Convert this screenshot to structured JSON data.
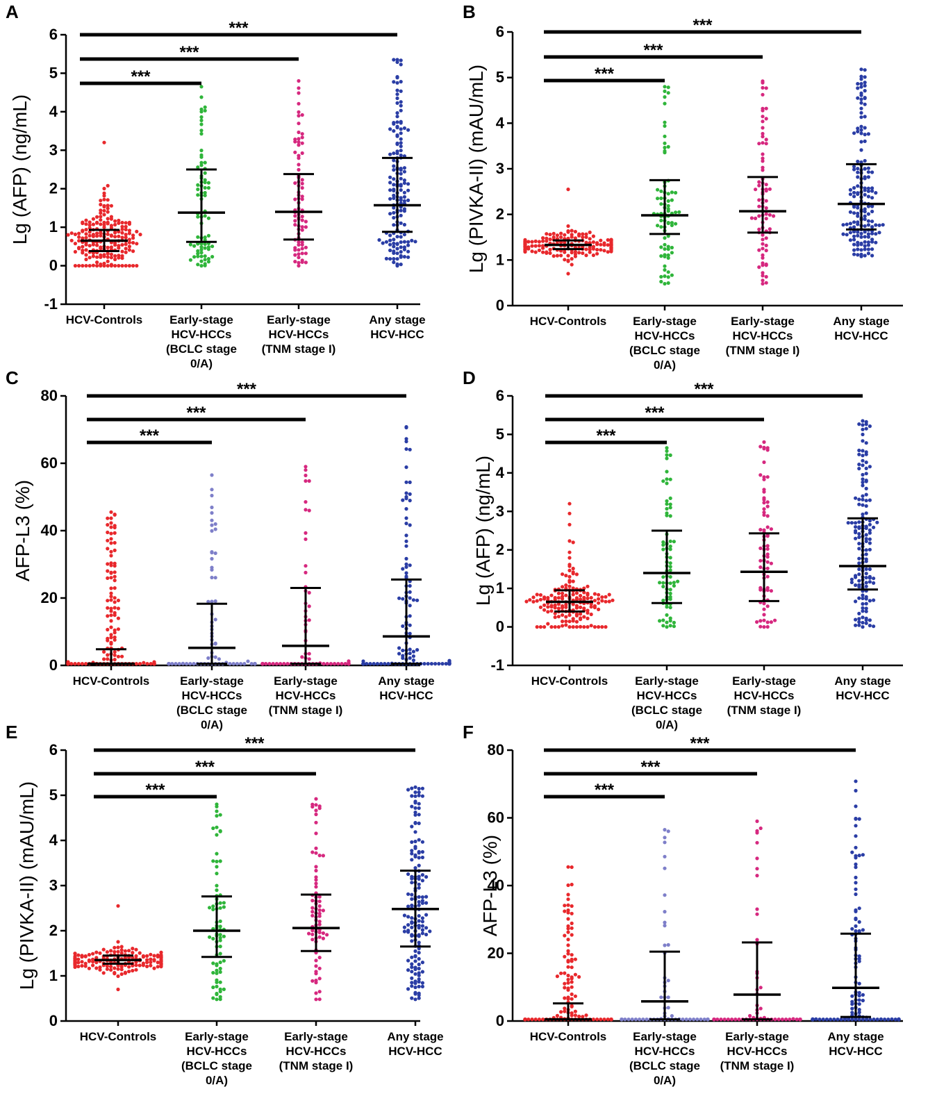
{
  "figure": {
    "colors": [
      "#e8282c",
      "#2fb53a",
      "#d6287f",
      "#2a3da5"
    ],
    "colors_afpl3": [
      "#e8282c",
      "#7e7fc9",
      "#d6287f",
      "#2a3da5"
    ],
    "errorbar_color": "#000000",
    "significance_label": "***"
  },
  "chart_data": [
    {
      "panel": "A",
      "type": "scatter",
      "subtype": "dot-plot with median and IQR",
      "ylabel": "Lg (AFP) (ng/mL)",
      "ylim": [
        -1,
        6
      ],
      "yticks": [
        -1,
        0,
        1,
        2,
        3,
        4,
        5,
        6
      ],
      "categories": [
        [
          "HCV-Controls"
        ],
        [
          "Early-stage",
          "HCV-HCCs",
          "(BCLC stage",
          "0/A)"
        ],
        [
          "Early-stage",
          "HCV-HCCs",
          "(TNM stage I)"
        ],
        [
          "Any stage",
          "HCV-HCC"
        ]
      ],
      "series": [
        {
          "name": "HCV-Controls",
          "n": 200,
          "median": 0.65,
          "q1": 0.38,
          "q3": 0.93,
          "min": 0.0,
          "max": 3.2,
          "dist": "lognormal"
        },
        {
          "name": "Early-stage HCV-HCCs (BCLC stage 0/A)",
          "n": 80,
          "median": 1.38,
          "q1": 0.62,
          "q3": 2.5,
          "min": 0.0,
          "max": 4.65,
          "dist": "uniform"
        },
        {
          "name": "Early-stage HCV-HCCs (TNM stage I)",
          "n": 80,
          "median": 1.4,
          "q1": 0.68,
          "q3": 2.38,
          "min": 0.0,
          "max": 4.8,
          "dist": "uniform"
        },
        {
          "name": "Any stage HCV-HCC",
          "n": 160,
          "median": 1.57,
          "q1": 0.88,
          "q3": 2.8,
          "min": 0.0,
          "max": 5.35,
          "dist": "uniform"
        }
      ],
      "comparisons": [
        {
          "from": 0,
          "to": 1,
          "label": "***"
        },
        {
          "from": 0,
          "to": 2,
          "label": "***"
        },
        {
          "from": 0,
          "to": 3,
          "label": "***"
        }
      ]
    },
    {
      "panel": "B",
      "type": "scatter",
      "subtype": "dot-plot with median and IQR",
      "ylabel": "Lg (PIVKA-II) (mAU/mL)",
      "ylim": [
        0,
        6
      ],
      "yticks": [
        0,
        1,
        2,
        3,
        4,
        5,
        6
      ],
      "categories": [
        [
          "HCV-Controls"
        ],
        [
          "Early-stage",
          "HCV-HCCs",
          "(BCLC stage",
          "0/A)"
        ],
        [
          "Early-stage",
          "HCV-HCCs",
          "(TNM stage I)"
        ],
        [
          "Any stage",
          "HCV-HCC"
        ]
      ],
      "series": [
        {
          "name": "HCV-Controls",
          "n": 200,
          "median": 1.33,
          "q1": 1.24,
          "q3": 1.43,
          "min": 0.7,
          "max": 2.55,
          "dist": "normal"
        },
        {
          "name": "Early-stage HCV-HCCs (BCLC stage 0/A)",
          "n": 80,
          "median": 1.98,
          "q1": 1.57,
          "q3": 2.75,
          "min": 0.48,
          "max": 4.8,
          "dist": "uniform"
        },
        {
          "name": "Early-stage HCV-HCCs (TNM stage I)",
          "n": 80,
          "median": 2.07,
          "q1": 1.6,
          "q3": 2.82,
          "min": 0.48,
          "max": 4.92,
          "dist": "uniform"
        },
        {
          "name": "Any stage HCV-HCC",
          "n": 170,
          "median": 2.23,
          "q1": 1.67,
          "q3": 3.1,
          "min": 1.08,
          "max": 5.18,
          "dist": "uniform"
        }
      ],
      "comparisons": [
        {
          "from": 0,
          "to": 1,
          "label": "***"
        },
        {
          "from": 0,
          "to": 2,
          "label": "***"
        },
        {
          "from": 0,
          "to": 3,
          "label": "***"
        }
      ]
    },
    {
      "panel": "C",
      "type": "scatter",
      "subtype": "dot-plot with median and IQR",
      "ylabel": "AFP-L3 (%)",
      "ylim": [
        0,
        80
      ],
      "yticks": [
        0,
        20,
        40,
        60,
        80
      ],
      "categories": [
        [
          "HCV-Controls"
        ],
        [
          "Early-stage",
          "HCV-HCCs",
          "(BCLC stage",
          "0/A)"
        ],
        [
          "Early-stage",
          "HCV-HCCs",
          "(TNM stage I)"
        ],
        [
          "Any stage",
          "HCV-HCC"
        ]
      ],
      "series": [
        {
          "name": "HCV-Controls",
          "n": 200,
          "median": 0.5,
          "q1": 0.5,
          "q3": 4.8,
          "min": 0.5,
          "max": 45.5,
          "dist": "skew"
        },
        {
          "name": "Early-stage HCV-HCCs (BCLC stage 0/A)",
          "n": 80,
          "median": 5.2,
          "q1": 0.5,
          "q3": 18.3,
          "min": 0.5,
          "max": 56.5,
          "dist": "skew"
        },
        {
          "name": "Early-stage HCV-HCCs (TNM stage I)",
          "n": 80,
          "median": 5.8,
          "q1": 0.5,
          "q3": 23.0,
          "min": 0.5,
          "max": 59.0,
          "dist": "skew"
        },
        {
          "name": "Any stage HCV-HCC",
          "n": 170,
          "median": 8.6,
          "q1": 0.5,
          "q3": 25.5,
          "min": 0.5,
          "max": 70.8,
          "dist": "skew"
        }
      ],
      "comparisons": [
        {
          "from": 0,
          "to": 1,
          "label": "***"
        },
        {
          "from": 0,
          "to": 2,
          "label": "***"
        },
        {
          "from": 0,
          "to": 3,
          "label": "***"
        }
      ]
    },
    {
      "panel": "D",
      "type": "scatter",
      "subtype": "dot-plot with median and IQR",
      "ylabel": "Lg (AFP) (ng/mL)",
      "ylim": [
        -1,
        6
      ],
      "yticks": [
        -1,
        0,
        1,
        2,
        3,
        4,
        5,
        6
      ],
      "categories": [
        [
          "HCV-Controls"
        ],
        [
          "Early-stage",
          "HCV-HCCs",
          "(BCLC stage",
          "0/A)"
        ],
        [
          "Early-stage",
          "HCV-HCCs",
          "(TNM stage I)"
        ],
        [
          "Any stage",
          "HCV-HCC"
        ]
      ],
      "series": [
        {
          "name": "HCV-Controls",
          "n": 170,
          "median": 0.65,
          "q1": 0.4,
          "q3": 0.95,
          "min": 0.0,
          "max": 3.2,
          "dist": "lognormal"
        },
        {
          "name": "Early-stage HCV-HCCs (BCLC stage 0/A)",
          "n": 75,
          "median": 1.4,
          "q1": 0.62,
          "q3": 2.5,
          "min": 0.0,
          "max": 4.65,
          "dist": "uniform"
        },
        {
          "name": "Early-stage HCV-HCCs (TNM stage I)",
          "n": 75,
          "median": 1.43,
          "q1": 0.67,
          "q3": 2.43,
          "min": 0.0,
          "max": 4.8,
          "dist": "uniform"
        },
        {
          "name": "Any stage HCV-HCC",
          "n": 150,
          "median": 1.58,
          "q1": 0.97,
          "q3": 2.82,
          "min": 0.0,
          "max": 5.35,
          "dist": "uniform"
        }
      ],
      "comparisons": [
        {
          "from": 0,
          "to": 1,
          "label": "***"
        },
        {
          "from": 0,
          "to": 2,
          "label": "***"
        },
        {
          "from": 0,
          "to": 3,
          "label": "***"
        }
      ]
    },
    {
      "panel": "E",
      "type": "scatter",
      "subtype": "dot-plot with median and IQR",
      "ylabel": "Lg (PIVKA-II) (mAU/mL)",
      "ylim": [
        0,
        6
      ],
      "yticks": [
        0,
        1,
        2,
        3,
        4,
        5,
        6
      ],
      "categories": [
        [
          "HCV-Controls"
        ],
        [
          "Early-stage",
          "HCV-HCCs",
          "(BCLC stage",
          "0/A)"
        ],
        [
          "Early-stage",
          "HCV-HCCs",
          "(TNM stage I)"
        ],
        [
          "Any stage",
          "HCV-HCC"
        ]
      ],
      "series": [
        {
          "name": "HCV-Controls",
          "n": 170,
          "median": 1.35,
          "q1": 1.27,
          "q3": 1.45,
          "min": 0.7,
          "max": 2.55,
          "dist": "normal"
        },
        {
          "name": "Early-stage HCV-HCCs (BCLC stage 0/A)",
          "n": 75,
          "median": 2.0,
          "q1": 1.42,
          "q3": 2.76,
          "min": 0.48,
          "max": 4.8,
          "dist": "uniform"
        },
        {
          "name": "Early-stage HCV-HCCs (TNM stage I)",
          "n": 75,
          "median": 2.06,
          "q1": 1.55,
          "q3": 2.8,
          "min": 0.48,
          "max": 4.92,
          "dist": "uniform"
        },
        {
          "name": "Any stage HCV-HCC",
          "n": 160,
          "median": 2.48,
          "q1": 1.65,
          "q3": 3.33,
          "min": 0.48,
          "max": 5.18,
          "dist": "uniform"
        }
      ],
      "comparisons": [
        {
          "from": 0,
          "to": 1,
          "label": "***"
        },
        {
          "from": 0,
          "to": 2,
          "label": "***"
        },
        {
          "from": 0,
          "to": 3,
          "label": "***"
        }
      ]
    },
    {
      "panel": "F",
      "type": "scatter",
      "subtype": "dot-plot with median and IQR",
      "ylabel": "AFP-L3 (%)",
      "ylim": [
        0,
        80
      ],
      "yticks": [
        0,
        20,
        40,
        60,
        80
      ],
      "categories": [
        [
          "HCV-Controls"
        ],
        [
          "Early-stage",
          "HCV-HCCs",
          "(BCLC stage",
          "0/A)"
        ],
        [
          "Early-stage",
          "HCV-HCCs",
          "(TNM stage I)"
        ],
        [
          "Any stage",
          "HCV-HCC"
        ]
      ],
      "series": [
        {
          "name": "HCV-Controls",
          "n": 170,
          "median": 0.5,
          "q1": 0.5,
          "q3": 5.2,
          "min": 0.5,
          "max": 45.5,
          "dist": "skew"
        },
        {
          "name": "Early-stage HCV-HCCs (BCLC stage 0/A)",
          "n": 75,
          "median": 5.8,
          "q1": 0.5,
          "q3": 20.5,
          "min": 0.5,
          "max": 56.5,
          "dist": "skew"
        },
        {
          "name": "Early-stage HCV-HCCs (TNM stage I)",
          "n": 75,
          "median": 7.8,
          "q1": 0.5,
          "q3": 23.2,
          "min": 0.5,
          "max": 59.0,
          "dist": "skew"
        },
        {
          "name": "Any stage HCV-HCC",
          "n": 160,
          "median": 9.8,
          "q1": 1.2,
          "q3": 25.8,
          "min": 0.5,
          "max": 70.8,
          "dist": "skew"
        }
      ],
      "comparisons": [
        {
          "from": 0,
          "to": 1,
          "label": "***"
        },
        {
          "from": 0,
          "to": 2,
          "label": "***"
        },
        {
          "from": 0,
          "to": 3,
          "label": "***"
        }
      ]
    }
  ]
}
